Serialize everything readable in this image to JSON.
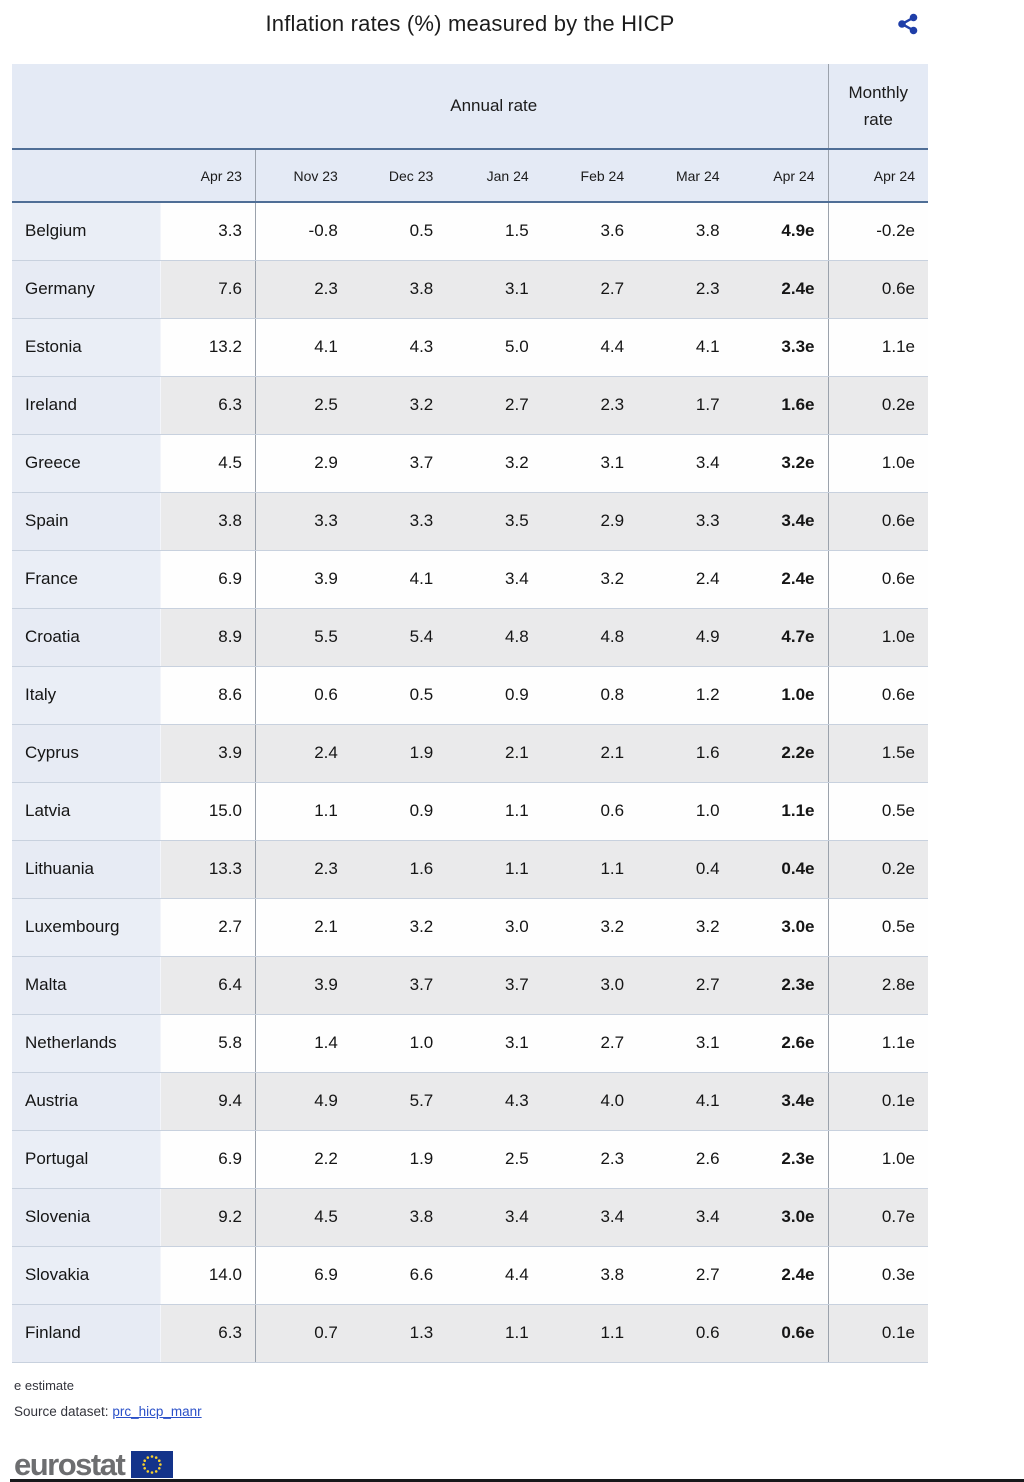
{
  "title": "Inflation rates (%) measured by the HICP",
  "icons": {
    "share": "share-icon",
    "eu_flag": "eu-flag-icon"
  },
  "colors": {
    "header_bg": "#e4eaf5",
    "country_col_bg": "#eaeef6",
    "stripe_gray": "#eaeaeb",
    "header_border": "#4f6e96",
    "row_divider": "#c8d1de",
    "column_divider": "#9ba2ac",
    "link_blue": "#2a50c8",
    "share_icon_blue": "#1f3ea8",
    "eurostat_gray": "#6d6e70",
    "eu_flag_blue": "#13338a"
  },
  "chart_data": {
    "type": "table",
    "title": "Inflation rates (%) measured by the HICP",
    "group_headers": {
      "annual": "Annual rate",
      "monthly": "Monthly rate"
    },
    "columns": [
      "Apr 23",
      "Nov 23",
      "Dec 23",
      "Jan 24",
      "Feb 24",
      "Mar 24",
      "Apr 24"
    ],
    "monthly_column": "Apr 24",
    "rows": [
      {
        "country": "Belgium",
        "annual": [
          "3.3",
          "-0.8",
          "0.5",
          "1.5",
          "3.6",
          "3.8",
          "4.9e"
        ],
        "monthly": "-0.2e"
      },
      {
        "country": "Germany",
        "annual": [
          "7.6",
          "2.3",
          "3.8",
          "3.1",
          "2.7",
          "2.3",
          "2.4e"
        ],
        "monthly": "0.6e"
      },
      {
        "country": "Estonia",
        "annual": [
          "13.2",
          "4.1",
          "4.3",
          "5.0",
          "4.4",
          "4.1",
          "3.3e"
        ],
        "monthly": "1.1e"
      },
      {
        "country": "Ireland",
        "annual": [
          "6.3",
          "2.5",
          "3.2",
          "2.7",
          "2.3",
          "1.7",
          "1.6e"
        ],
        "monthly": "0.2e"
      },
      {
        "country": "Greece",
        "annual": [
          "4.5",
          "2.9",
          "3.7",
          "3.2",
          "3.1",
          "3.4",
          "3.2e"
        ],
        "monthly": "1.0e"
      },
      {
        "country": "Spain",
        "annual": [
          "3.8",
          "3.3",
          "3.3",
          "3.5",
          "2.9",
          "3.3",
          "3.4e"
        ],
        "monthly": "0.6e"
      },
      {
        "country": "France",
        "annual": [
          "6.9",
          "3.9",
          "4.1",
          "3.4",
          "3.2",
          "2.4",
          "2.4e"
        ],
        "monthly": "0.6e"
      },
      {
        "country": "Croatia",
        "annual": [
          "8.9",
          "5.5",
          "5.4",
          "4.8",
          "4.8",
          "4.9",
          "4.7e"
        ],
        "monthly": "1.0e"
      },
      {
        "country": "Italy",
        "annual": [
          "8.6",
          "0.6",
          "0.5",
          "0.9",
          "0.8",
          "1.2",
          "1.0e"
        ],
        "monthly": "0.6e"
      },
      {
        "country": "Cyprus",
        "annual": [
          "3.9",
          "2.4",
          "1.9",
          "2.1",
          "2.1",
          "1.6",
          "2.2e"
        ],
        "monthly": "1.5e"
      },
      {
        "country": "Latvia",
        "annual": [
          "15.0",
          "1.1",
          "0.9",
          "1.1",
          "0.6",
          "1.0",
          "1.1e"
        ],
        "monthly": "0.5e"
      },
      {
        "country": "Lithuania",
        "annual": [
          "13.3",
          "2.3",
          "1.6",
          "1.1",
          "1.1",
          "0.4",
          "0.4e"
        ],
        "monthly": "0.2e"
      },
      {
        "country": "Luxembourg",
        "annual": [
          "2.7",
          "2.1",
          "3.2",
          "3.0",
          "3.2",
          "3.2",
          "3.0e"
        ],
        "monthly": "0.5e"
      },
      {
        "country": "Malta",
        "annual": [
          "6.4",
          "3.9",
          "3.7",
          "3.7",
          "3.0",
          "2.7",
          "2.3e"
        ],
        "monthly": "2.8e"
      },
      {
        "country": "Netherlands",
        "annual": [
          "5.8",
          "1.4",
          "1.0",
          "3.1",
          "2.7",
          "3.1",
          "2.6e"
        ],
        "monthly": "1.1e"
      },
      {
        "country": "Austria",
        "annual": [
          "9.4",
          "4.9",
          "5.7",
          "4.3",
          "4.0",
          "4.1",
          "3.4e"
        ],
        "monthly": "0.1e"
      },
      {
        "country": "Portugal",
        "annual": [
          "6.9",
          "2.2",
          "1.9",
          "2.5",
          "2.3",
          "2.6",
          "2.3e"
        ],
        "monthly": "1.0e"
      },
      {
        "country": "Slovenia",
        "annual": [
          "9.2",
          "4.5",
          "3.8",
          "3.4",
          "3.4",
          "3.4",
          "3.0e"
        ],
        "monthly": "0.7e"
      },
      {
        "country": "Slovakia",
        "annual": [
          "14.0",
          "6.9",
          "6.6",
          "4.4",
          "3.8",
          "2.7",
          "2.4e"
        ],
        "monthly": "0.3e"
      },
      {
        "country": "Finland",
        "annual": [
          "6.3",
          "0.7",
          "1.3",
          "1.1",
          "1.1",
          "0.6",
          "0.6e"
        ],
        "monthly": "0.1e"
      }
    ],
    "footnote": "e estimate"
  },
  "footer": {
    "note": "e estimate",
    "source_label": "Source dataset:",
    "source_link": "prc_hicp_manr",
    "logo_text": "eurostat"
  }
}
